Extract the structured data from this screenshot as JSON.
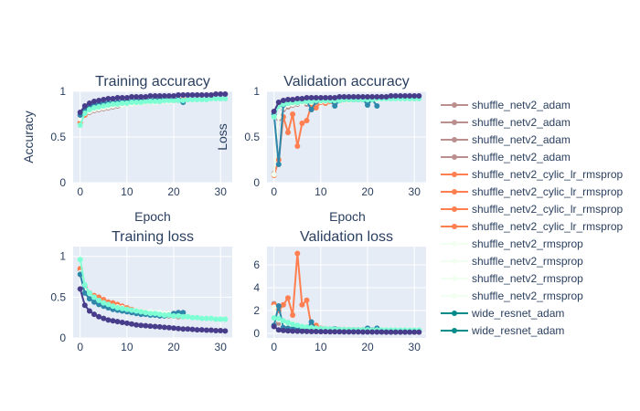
{
  "chart_data": {
    "type": "line",
    "x": [
      0,
      1,
      2,
      3,
      4,
      5,
      6,
      7,
      8,
      9,
      10,
      11,
      12,
      13,
      14,
      15,
      16,
      17,
      18,
      19,
      20,
      21,
      22,
      23,
      24,
      25,
      26,
      27,
      28,
      29,
      30,
      31
    ],
    "legend": {
      "placement": "right",
      "entries": [
        {
          "name": "shuffle_netv2_adam",
          "color": "#bc8f8f"
        },
        {
          "name": "shuffle_netv2_adam",
          "color": "#bc8f8f"
        },
        {
          "name": "shuffle_netv2_adam",
          "color": "#bc8f8f"
        },
        {
          "name": "shuffle_netv2_adam",
          "color": "#bc8f8f"
        },
        {
          "name": "shuffle_netv2_cylic_lr_rmsprop",
          "color": "#ff7f50"
        },
        {
          "name": "shuffle_netv2_cylic_lr_rmsprop",
          "color": "#ff7f50"
        },
        {
          "name": "shuffle_netv2_cylic_lr_rmsprop",
          "color": "#ff7f50"
        },
        {
          "name": "shuffle_netv2_cylic_lr_rmsprop",
          "color": "#ff7f50"
        },
        {
          "name": "shuffle_netv2_rmsprop",
          "color": "#f0fff0"
        },
        {
          "name": "shuffle_netv2_rmsprop",
          "color": "#f0fff0"
        },
        {
          "name": "shuffle_netv2_rmsprop",
          "color": "#f0fff0"
        },
        {
          "name": "shuffle_netv2_rmsprop",
          "color": "#f0fff0"
        },
        {
          "name": "wide_resnet_adam",
          "color": "#008b8b"
        },
        {
          "name": "wide_resnet_adam",
          "color": "#008b8b"
        }
      ]
    },
    "subplots": [
      {
        "title": "Training accuracy",
        "xlabel": "Epoch",
        "ylabel": "Accuracy",
        "xlim": [
          -1.5,
          32.5
        ],
        "ylim": [
          0,
          1
        ],
        "xticks": [
          0,
          10,
          20,
          30
        ],
        "yticks": [
          0,
          0.5,
          1
        ],
        "grid": true,
        "series": [
          {
            "color": "#bc8f8f",
            "values": [
              0.7,
              0.75,
              0.77,
              0.79,
              0.8,
              0.81,
              0.82,
              0.83,
              0.84,
              0.85,
              0.86,
              0.86,
              0.87,
              0.87,
              0.88,
              0.88,
              0.89,
              0.89,
              0.89,
              0.9,
              0.9,
              0.9,
              0.91
            ]
          },
          {
            "color": "#ff7f50",
            "values": [
              0.66,
              0.74,
              0.78,
              0.8,
              0.82,
              0.83,
              0.84,
              0.85,
              0.86,
              0.86,
              0.87,
              0.87,
              0.88,
              0.88,
              0.88,
              0.89,
              0.89,
              0.89,
              0.9,
              0.9,
              0.9,
              0.9,
              0.91
            ]
          },
          {
            "color": "#f0fff0",
            "values": [
              0.7,
              0.76,
              0.78,
              0.8,
              0.81,
              0.82,
              0.83,
              0.84,
              0.85,
              0.85,
              0.86,
              0.86,
              0.87,
              0.87,
              0.88,
              0.88,
              0.88,
              0.89,
              0.89,
              0.89,
              0.9,
              0.9,
              0.9
            ]
          },
          {
            "color": "#2e86ab",
            "values": [
              0.74,
              0.8,
              0.83,
              0.85,
              0.86,
              0.87,
              0.87,
              0.88,
              0.88,
              0.89,
              0.89,
              0.89,
              0.9,
              0.9,
              0.9,
              0.9,
              0.91,
              0.91,
              0.91,
              0.91,
              0.91,
              0.91,
              0.88
            ]
          },
          {
            "color": "#7fffd4",
            "values": [
              0.63,
              0.76,
              0.8,
              0.82,
              0.83,
              0.84,
              0.85,
              0.86,
              0.86,
              0.87,
              0.87,
              0.88,
              0.88,
              0.88,
              0.89,
              0.89,
              0.89,
              0.89,
              0.9,
              0.9,
              0.9,
              0.9,
              0.9,
              0.91,
              0.91,
              0.91,
              0.91,
              0.91,
              0.92,
              0.92,
              0.92,
              0.92
            ]
          },
          {
            "color": "#483d8b",
            "values": [
              0.77,
              0.84,
              0.87,
              0.89,
              0.9,
              0.91,
              0.92,
              0.92,
              0.93,
              0.93,
              0.93,
              0.94,
              0.94,
              0.94,
              0.94,
              0.95,
              0.95,
              0.95,
              0.95,
              0.95,
              0.95,
              0.96,
              0.96,
              0.96,
              0.96,
              0.96,
              0.96,
              0.96,
              0.96,
              0.97,
              0.97,
              0.97
            ]
          }
        ]
      },
      {
        "title": "Validation accuracy",
        "xlabel": "Epoch",
        "ylabel": "Loss",
        "xlim": [
          -1.5,
          32.5
        ],
        "ylim": [
          0,
          1
        ],
        "xticks": [
          0,
          10,
          20,
          30
        ],
        "yticks": [
          0,
          0.5,
          1
        ],
        "grid": true,
        "series": [
          {
            "color": "#bc8f8f",
            "values": [
              0.1,
              0.7,
              0.8,
              0.83,
              0.85,
              0.86,
              0.87,
              0.86,
              0.88,
              0.88,
              0.89,
              0.89,
              0.9,
              0.9,
              0.9,
              0.9,
              0.91,
              0.91,
              0.91,
              0.91,
              0.91,
              0.91,
              0.92
            ]
          },
          {
            "color": "#ff7f50",
            "values": [
              0.08,
              0.25,
              0.72,
              0.55,
              0.75,
              0.4,
              0.65,
              0.68,
              0.85,
              0.82,
              0.88,
              0.87,
              0.89,
              0.88,
              0.9,
              0.9,
              0.9,
              0.91,
              0.91,
              0.91,
              0.91,
              0.91,
              0.91
            ]
          },
          {
            "color": "#f0fff0",
            "values": [
              0.09,
              0.72,
              0.82,
              0.85,
              0.86,
              0.87,
              0.87,
              0.88,
              0.88,
              0.89,
              0.89,
              0.89,
              0.9,
              0.9,
              0.9,
              0.9,
              0.9,
              0.91,
              0.91,
              0.91,
              0.91,
              0.91,
              0.91
            ]
          },
          {
            "color": "#2e86ab",
            "values": [
              0.75,
              0.2,
              0.85,
              0.87,
              0.88,
              0.88,
              0.89,
              0.89,
              0.8,
              0.89,
              0.9,
              0.9,
              0.9,
              0.84,
              0.9,
              0.91,
              0.91,
              0.91,
              0.91,
              0.91,
              0.85,
              0.91,
              0.84
            ]
          },
          {
            "color": "#7fffd4",
            "values": [
              0.72,
              0.84,
              0.86,
              0.87,
              0.88,
              0.88,
              0.89,
              0.89,
              0.89,
              0.9,
              0.9,
              0.9,
              0.9,
              0.9,
              0.9,
              0.91,
              0.91,
              0.91,
              0.91,
              0.91,
              0.91,
              0.91,
              0.92,
              0.92,
              0.92,
              0.92,
              0.92,
              0.92,
              0.92,
              0.92,
              0.92,
              0.92
            ]
          },
          {
            "color": "#483d8b",
            "values": [
              0.78,
              0.88,
              0.9,
              0.91,
              0.91,
              0.92,
              0.92,
              0.93,
              0.93,
              0.93,
              0.93,
              0.93,
              0.93,
              0.93,
              0.94,
              0.94,
              0.94,
              0.94,
              0.94,
              0.94,
              0.94,
              0.94,
              0.94,
              0.94,
              0.94,
              0.95,
              0.95,
              0.95,
              0.95,
              0.95,
              0.95,
              0.95
            ]
          }
        ]
      },
      {
        "title": "Training loss",
        "xlabel": "",
        "ylabel": "",
        "xlim": [
          -1.5,
          32.5
        ],
        "ylim": [
          0,
          1.12
        ],
        "xticks": [
          0,
          10,
          20,
          30
        ],
        "yticks": [
          0,
          0.5,
          1
        ],
        "grid": true,
        "series": [
          {
            "color": "#bc8f8f",
            "values": [
              0.82,
              0.62,
              0.55,
              0.5,
              0.47,
              0.44,
              0.42,
              0.4,
              0.38,
              0.36,
              0.35,
              0.34,
              0.33,
              0.32,
              0.31,
              0.3,
              0.29,
              0.28,
              0.28,
              0.27,
              0.27,
              0.26,
              0.26
            ]
          },
          {
            "color": "#ff7f50",
            "values": [
              0.85,
              0.62,
              0.55,
              0.52,
              0.5,
              0.47,
              0.44,
              0.43,
              0.41,
              0.39,
              0.37,
              0.35,
              0.34,
              0.33,
              0.32,
              0.31,
              0.3,
              0.3,
              0.29,
              0.28,
              0.28,
              0.27,
              0.27
            ]
          },
          {
            "color": "#f0fff0",
            "values": [
              0.8,
              0.6,
              0.52,
              0.48,
              0.45,
              0.43,
              0.41,
              0.39,
              0.38,
              0.37,
              0.35,
              0.34,
              0.34,
              0.33,
              0.32,
              0.32,
              0.31,
              0.31,
              0.3,
              0.3,
              0.29,
              0.29,
              0.28
            ]
          },
          {
            "color": "#2e86ab",
            "values": [
              0.78,
              0.55,
              0.48,
              0.44,
              0.41,
              0.39,
              0.37,
              0.35,
              0.34,
              0.33,
              0.32,
              0.31,
              0.3,
              0.29,
              0.29,
              0.28,
              0.28,
              0.27,
              0.27,
              0.28,
              0.3,
              0.31,
              0.31
            ]
          },
          {
            "color": "#7fffd4",
            "values": [
              0.96,
              0.65,
              0.55,
              0.5,
              0.46,
              0.43,
              0.41,
              0.39,
              0.37,
              0.36,
              0.35,
              0.34,
              0.33,
              0.32,
              0.31,
              0.3,
              0.3,
              0.29,
              0.28,
              0.28,
              0.27,
              0.27,
              0.26,
              0.26,
              0.25,
              0.25,
              0.24,
              0.24,
              0.24,
              0.23,
              0.23,
              0.23
            ]
          },
          {
            "color": "#483d8b",
            "values": [
              0.6,
              0.4,
              0.33,
              0.29,
              0.26,
              0.24,
              0.22,
              0.21,
              0.2,
              0.19,
              0.18,
              0.17,
              0.16,
              0.155,
              0.15,
              0.145,
              0.14,
              0.135,
              0.13,
              0.125,
              0.12,
              0.115,
              0.11,
              0.11,
              0.105,
              0.1,
              0.1,
              0.095,
              0.095,
              0.09,
              0.09,
              0.085
            ]
          }
        ]
      },
      {
        "title": "Validation loss",
        "xlabel": "",
        "ylabel": "",
        "xlim": [
          -1.5,
          32.5
        ],
        "ylim": [
          -0.4,
          7.6
        ],
        "xticks": [
          0,
          10,
          20,
          30
        ],
        "yticks": [
          0,
          2,
          4,
          6
        ],
        "grid": true,
        "series": [
          {
            "color": "#bc8f8f",
            "values": [
              2.6,
              0.9,
              0.7,
              0.6,
              0.55,
              0.5,
              0.45,
              0.42,
              0.4,
              0.38,
              0.37,
              0.36,
              0.35,
              0.34,
              0.33,
              0.33,
              0.32,
              0.32,
              0.31,
              0.31,
              0.3,
              0.3,
              0.3
            ]
          },
          {
            "color": "#ff7f50",
            "values": [
              2.5,
              2.0,
              2.5,
              3.1,
              1.6,
              7.0,
              2.5,
              2.9,
              0.6,
              0.7,
              0.45,
              0.4,
              0.38,
              0.36,
              0.35,
              0.34,
              0.33,
              0.32,
              0.32,
              0.31,
              0.31,
              0.3,
              0.3
            ]
          },
          {
            "color": "#f0fff0",
            "values": [
              2.3,
              1.2,
              0.8,
              0.6,
              0.55,
              0.5,
              0.45,
              0.42,
              0.4,
              0.38,
              0.36,
              0.35,
              0.34,
              0.33,
              0.32,
              0.32,
              0.31,
              0.31,
              0.3,
              0.3,
              0.3,
              0.29,
              0.29
            ]
          },
          {
            "color": "#2e86ab",
            "values": [
              0.7,
              2.4,
              0.5,
              0.45,
              0.4,
              0.38,
              0.36,
              0.35,
              1.0,
              0.34,
              0.33,
              0.32,
              0.32,
              0.4,
              0.31,
              0.31,
              0.3,
              0.3,
              0.3,
              0.3,
              0.45,
              0.3,
              0.45
            ]
          },
          {
            "color": "#7fffd4",
            "values": [
              1.35,
              1.3,
              1.1,
              0.95,
              0.8,
              0.7,
              0.6,
              0.55,
              0.5,
              0.45,
              0.42,
              0.4,
              0.38,
              0.36,
              0.35,
              0.34,
              0.33,
              0.32,
              0.32,
              0.31,
              0.31,
              0.3,
              0.3,
              0.3,
              0.29,
              0.29,
              0.29,
              0.28,
              0.28,
              0.28,
              0.28,
              0.28
            ]
          },
          {
            "color": "#483d8b",
            "values": [
              0.6,
              0.3,
              0.25,
              0.22,
              0.2,
              0.19,
              0.18,
              0.17,
              0.16,
              0.16,
              0.15,
              0.15,
              0.14,
              0.14,
              0.14,
              0.13,
              0.13,
              0.13,
              0.13,
              0.12,
              0.12,
              0.12,
              0.12,
              0.12,
              0.11,
              0.11,
              0.11,
              0.11,
              0.11,
              0.11,
              0.11,
              0.11
            ]
          }
        ]
      }
    ]
  }
}
